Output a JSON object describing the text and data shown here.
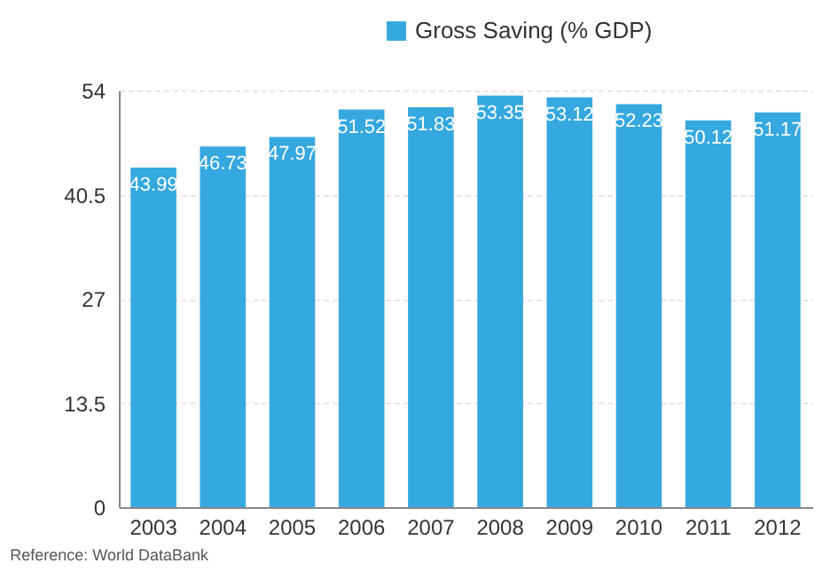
{
  "chart_data": {
    "type": "bar",
    "categories": [
      "2003",
      "2004",
      "2005",
      "2006",
      "2007",
      "2008",
      "2009",
      "2010",
      "2011",
      "2012"
    ],
    "series": [
      {
        "name": "Gross Saving (% GDP)",
        "color": "#35a8df",
        "values": [
          43.99,
          46.73,
          47.97,
          51.52,
          51.83,
          53.35,
          53.12,
          52.23,
          50.12,
          51.17
        ]
      }
    ],
    "ylim": [
      0,
      54
    ],
    "yticks": [
      0,
      13.5,
      27,
      40.5,
      54
    ],
    "grid": "y",
    "legend": "top",
    "data_labels": true,
    "annotations": [
      "Reference: World DataBank"
    ]
  }
}
